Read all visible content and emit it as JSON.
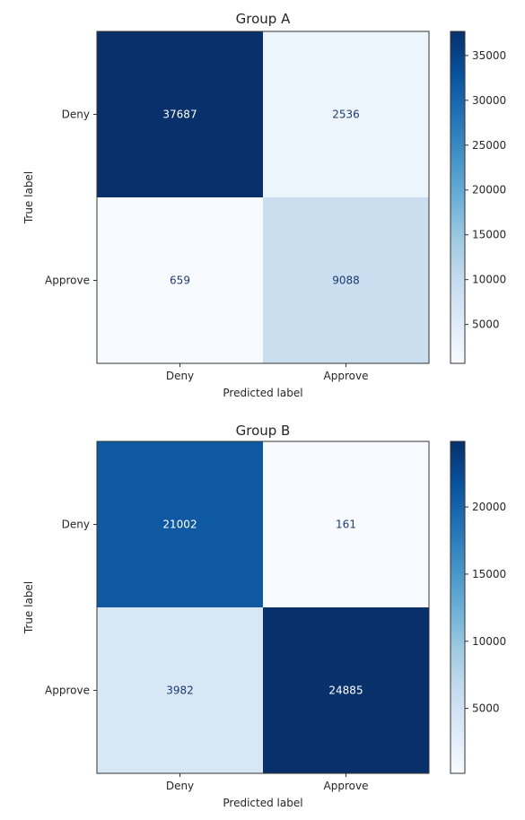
{
  "colormap": [
    "#f7fbff",
    "#deebf7",
    "#c6dbef",
    "#9ecae1",
    "#6baed6",
    "#4292c6",
    "#2171b5",
    "#08519c",
    "#08306b"
  ],
  "text_colors": {
    "light": "#ffffff",
    "dark": "#1f3a6e"
  },
  "chart_data": [
    {
      "type": "heatmap",
      "title": "Group A",
      "xlabel": "Predicted label",
      "ylabel": "True label",
      "x_categories": [
        "Deny",
        "Approve"
      ],
      "y_categories": [
        "Deny",
        "Approve"
      ],
      "values": [
        [
          37687,
          2536
        ],
        [
          659,
          9088
        ]
      ],
      "colorbar": {
        "min": 659,
        "max": 37687,
        "ticks": [
          5000,
          10000,
          15000,
          20000,
          25000,
          30000,
          35000
        ]
      }
    },
    {
      "type": "heatmap",
      "title": "Group B",
      "xlabel": "Predicted label",
      "ylabel": "True label",
      "x_categories": [
        "Deny",
        "Approve"
      ],
      "y_categories": [
        "Deny",
        "Approve"
      ],
      "values": [
        [
          21002,
          161
        ],
        [
          3982,
          24885
        ]
      ],
      "colorbar": {
        "min": 161,
        "max": 24885,
        "ticks": [
          5000,
          10000,
          15000,
          20000
        ]
      }
    }
  ]
}
